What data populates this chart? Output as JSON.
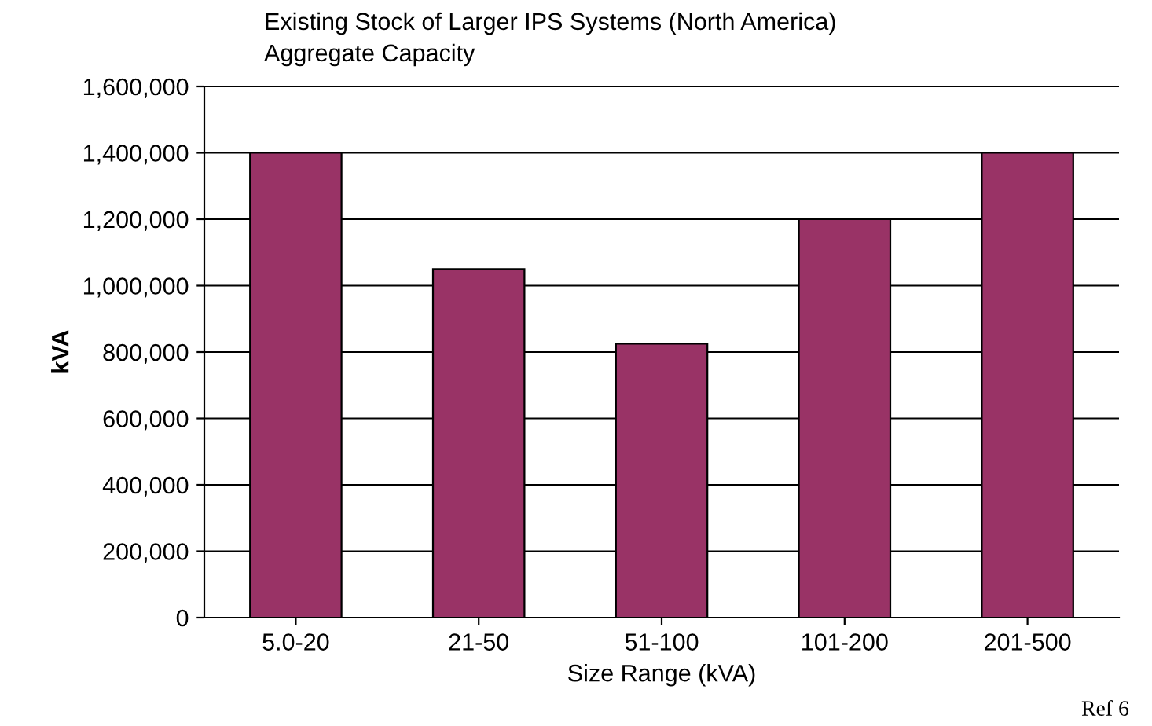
{
  "chart_data": {
    "type": "bar",
    "title": "Existing Stock of Larger IPS Systems (North America)",
    "subtitle": "Aggregate Capacity",
    "xlabel": "Size Range (kVA)",
    "ylabel": "kVA",
    "categories": [
      "5.0-20",
      "21-50",
      "51-100",
      "101-200",
      "201-500"
    ],
    "values": [
      1400000,
      1050000,
      825000,
      1200000,
      1400000
    ],
    "color": "#993366",
    "ylim": [
      0,
      1600000
    ],
    "yticks": [
      {
        "value": 0,
        "label": "0"
      },
      {
        "value": 200000,
        "label": "200,000"
      },
      {
        "value": 400000,
        "label": "400,000"
      },
      {
        "value": 600000,
        "label": "600,000"
      },
      {
        "value": 800000,
        "label": "800,000"
      },
      {
        "value": 1000000,
        "label": "1,000,000"
      },
      {
        "value": 1200000,
        "label": "1,200,000"
      },
      {
        "value": 1400000,
        "label": "1,400,000"
      },
      {
        "value": 1600000,
        "label": "1,600,000"
      }
    ],
    "grid": "y",
    "annotations": [
      "Ref 6"
    ]
  }
}
